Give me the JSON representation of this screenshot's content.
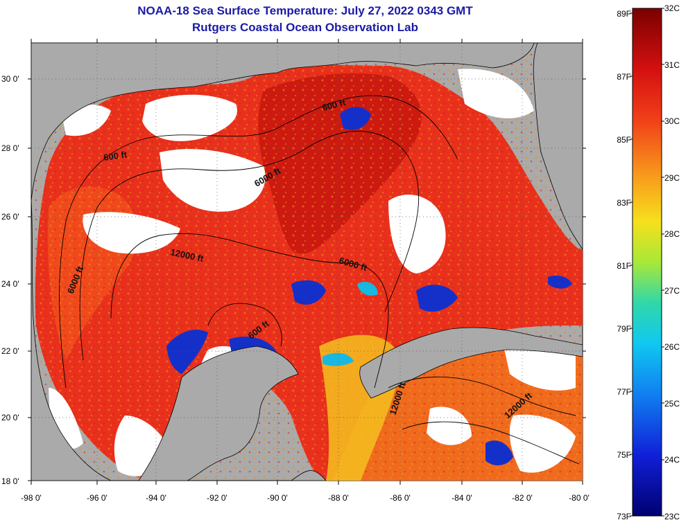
{
  "title": "NOAA-18 Sea Surface Temperature:  July 27, 2022 0343 GMT",
  "subtitle": "Rutgers Coastal Ocean Observation Lab",
  "lat_labels": [
    "30 0'",
    "28 0'",
    "26 0'",
    "24 0'",
    "22 0'",
    "20 0'",
    "18 0'"
  ],
  "lon_labels": [
    "-98 0'",
    "-96 0'",
    "-94 0'",
    "-92 0'",
    "-90 0'",
    "-88 0'",
    "-86 0'",
    "-84 0'",
    "-82 0'",
    "-80 0'"
  ],
  "contour_labels": [
    "600 ft",
    "600 ft",
    "6000 ft",
    "12000 ft",
    "6000 ft",
    "6000 ft",
    "600 ft",
    "12000 ft",
    "12000 ft"
  ],
  "colorbar": {
    "fahrenheit": [
      "89F",
      "87F",
      "85F",
      "83F",
      "81F",
      "79F",
      "77F",
      "75F",
      "73F"
    ],
    "celsius": [
      "32C",
      "31C",
      "30C",
      "29C",
      "28C",
      "27C",
      "26C",
      "25C",
      "24C",
      "23C"
    ],
    "min_c": 23,
    "max_c": 32
  },
  "colors": {
    "title": "#1a1aa6",
    "land": "#aaaaaa",
    "cloud": "#ffffff",
    "warm": "#e8301c",
    "hot": "#cc1a10",
    "orange": "#f06a1e",
    "yellow": "#f5d21e",
    "cool": "#1530c8"
  }
}
